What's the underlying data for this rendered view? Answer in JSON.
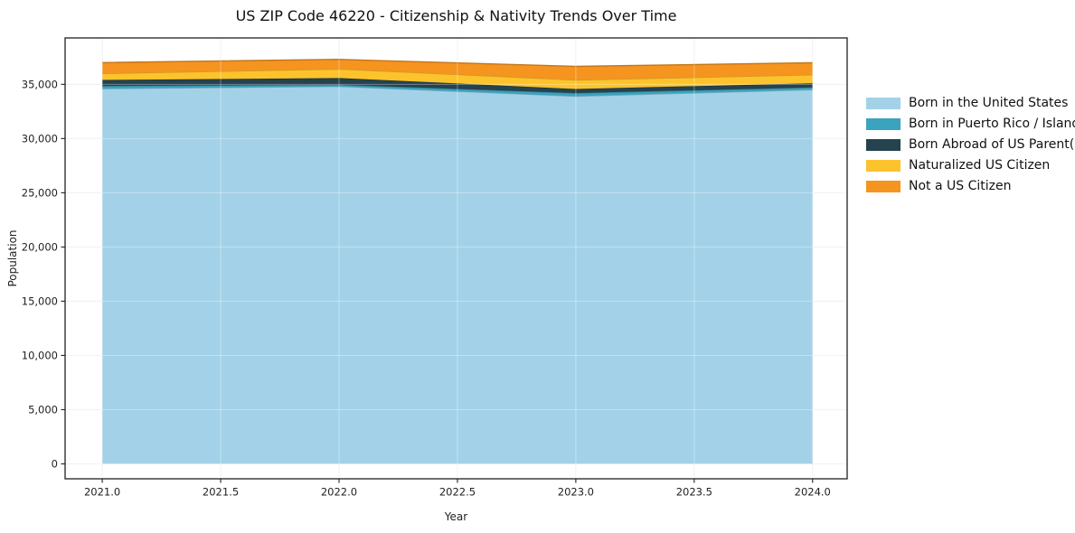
{
  "chart_data": {
    "type": "area",
    "stacked": true,
    "title": "US ZIP Code 46220 - Citizenship & Nativity Trends Over Time",
    "xlabel": "Year",
    "ylabel": "Population",
    "x": [
      2021,
      2022,
      2023,
      2024
    ],
    "series": [
      {
        "name": "Born in the United States",
        "color": "#a3d2e8",
        "values": [
          34600,
          34800,
          33900,
          34500
        ]
      },
      {
        "name": "Born in Puerto Rico / Islands",
        "color": "#3ba3be",
        "values": [
          250,
          160,
          290,
          210
        ]
      },
      {
        "name": "Born Abroad of US Parent(s)",
        "color": "#25424f",
        "values": [
          550,
          620,
          380,
          390
        ]
      },
      {
        "name": "Naturalized US Citizen",
        "color": "#fcc32d",
        "values": [
          600,
          830,
          830,
          780
        ]
      },
      {
        "name": "Not a US Citizen",
        "color": "#f5941f",
        "values": [
          1000,
          890,
          1250,
          1110
        ]
      }
    ],
    "x_tick_labels": [
      "2021.0",
      "2021.5",
      "2022.0",
      "2022.5",
      "2023.0",
      "2023.5",
      "2024.0"
    ],
    "y_tick_labels": [
      "0",
      "5,000",
      "10,000",
      "15,000",
      "20,000",
      "25,000",
      "30,000",
      "35,000"
    ],
    "y_tick_values": [
      0,
      5000,
      10000,
      15000,
      20000,
      25000,
      30000,
      35000
    ],
    "xlim": [
      2020.843,
      2024.146
    ],
    "ylim": [
      -1375,
      39275
    ],
    "grid": true,
    "legend_position": "right",
    "colors": {
      "grid_under": "#ececec",
      "grid_over": "rgba(255,255,255,0.35)",
      "spine": "#202020",
      "tick_text": "#222222"
    }
  }
}
